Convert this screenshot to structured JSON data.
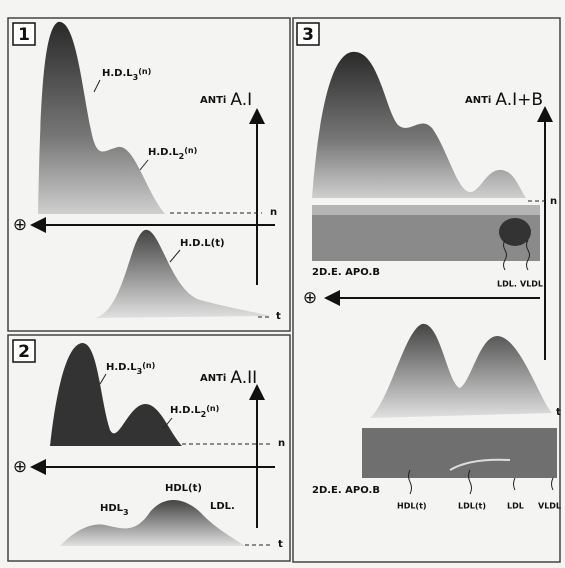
{
  "panels": [
    {
      "number": "1",
      "antibody": {
        "prefix": "ANTi",
        "name": "A.I"
      },
      "labels": [
        {
          "base": "H.D.L",
          "sub": "3",
          "suffix": "(n)"
        },
        {
          "base": "H.D.L",
          "sub": "2",
          "suffix": "(n)"
        },
        {
          "base": "H.D.L(t)"
        }
      ],
      "markers": {
        "n": "n",
        "t": "t",
        "anode": "⊕"
      }
    },
    {
      "number": "2",
      "antibody": {
        "prefix": "ANTi",
        "name": "A.II"
      },
      "labels": [
        {
          "base": "H.D.L",
          "sub": "3",
          "suffix": "(n)"
        },
        {
          "base": "H.D.L",
          "sub": "2",
          "suffix": "(n)"
        },
        {
          "base": "HDL",
          "sub": "3"
        },
        {
          "base": "HDL(t)"
        },
        {
          "base": "LDL."
        }
      ],
      "markers": {
        "n": "n",
        "t": "t",
        "anode": "⊕"
      }
    },
    {
      "number": "3",
      "antibody": {
        "prefix": "ANTi",
        "name": "A.I+B"
      },
      "gel_top": {
        "caption": "2D.E. APO.B",
        "labels": [
          "LDL.",
          "VLDL"
        ]
      },
      "gel_bottom": {
        "caption": "2D.E. APO.B",
        "labels": [
          "HDL(t)",
          "LDL(t)",
          "LDL",
          "VLDL"
        ]
      },
      "markers": {
        "n": "n",
        "t": "t",
        "anode": "⊕"
      }
    }
  ]
}
